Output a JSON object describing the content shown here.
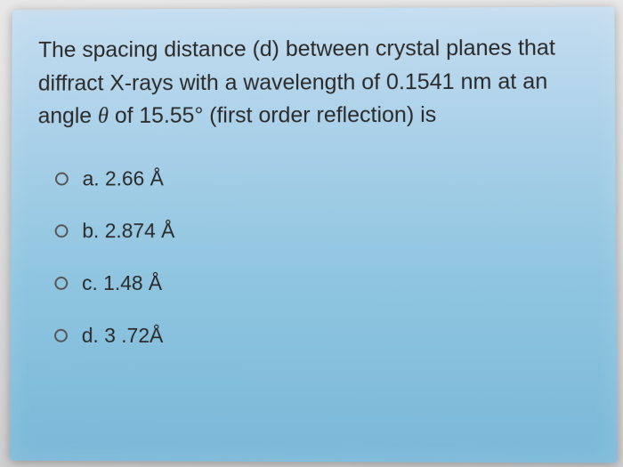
{
  "question": {
    "text_parts": {
      "p1": "The spacing distance (d) between crystal planes that diffract X-rays with a wavelength of 0.1541 nm at an angle ",
      "theta": "θ",
      "p2": " of 15.55° (first order reflection) is"
    }
  },
  "options": [
    {
      "letter": "a.",
      "value": "2.66 Å"
    },
    {
      "letter": "b.",
      "value": "2.874 Å"
    },
    {
      "letter": "c.",
      "value": "1.48 Å"
    },
    {
      "letter": "d.",
      "value": "3 .72Å"
    }
  ],
  "styling": {
    "background_gradient_top": "#c5ddf0",
    "background_gradient_bottom": "#7ab8d8",
    "text_color": "#2a2a2a",
    "radio_border_color": "#555555",
    "question_fontsize": 25,
    "option_fontsize": 23
  }
}
